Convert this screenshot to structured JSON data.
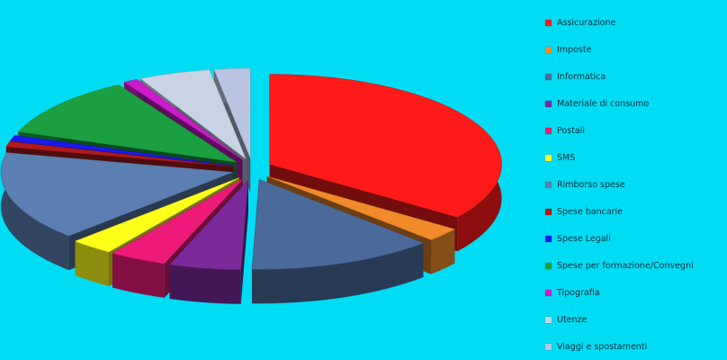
{
  "chart_data": {
    "type": "pie",
    "variant": "3d-exploded",
    "title": "",
    "legend_position": "right",
    "slices": [
      {
        "label": "Assicurazione",
        "value": 35.0,
        "color": "#ff1a1a"
      },
      {
        "label": "Imposte",
        "value": 2.5,
        "color": "#f08a2a"
      },
      {
        "label": "Informatica",
        "value": 13.0,
        "color": "#4a6a99"
      },
      {
        "label": "Materiale di consumo",
        "value": 5.0,
        "color": "#7a2a99"
      },
      {
        "label": "Postali",
        "value": 4.0,
        "color": "#ee1a7a"
      },
      {
        "label": "SMS",
        "value": 3.0,
        "color": "#ffff1a"
      },
      {
        "label": "Rimborso spese",
        "value": 16.0,
        "color": "#5a7fb0"
      },
      {
        "label": "Spese bancarie",
        "value": 1.0,
        "color": "#b01a1a"
      },
      {
        "label": "Spese Legali",
        "value": 1.0,
        "color": "#1a1aee"
      },
      {
        "label": "Spese per formazione/Convegni",
        "value": 11.0,
        "color": "#1aa040"
      },
      {
        "label": "Tipografia",
        "value": 1.0,
        "color": "#cc1acc"
      },
      {
        "label": "Utenze",
        "value": 5.0,
        "color": "#c8d4e6"
      },
      {
        "label": "Viaggi e spostamenti",
        "value": 2.5,
        "color": "#b8c4e0"
      }
    ]
  }
}
